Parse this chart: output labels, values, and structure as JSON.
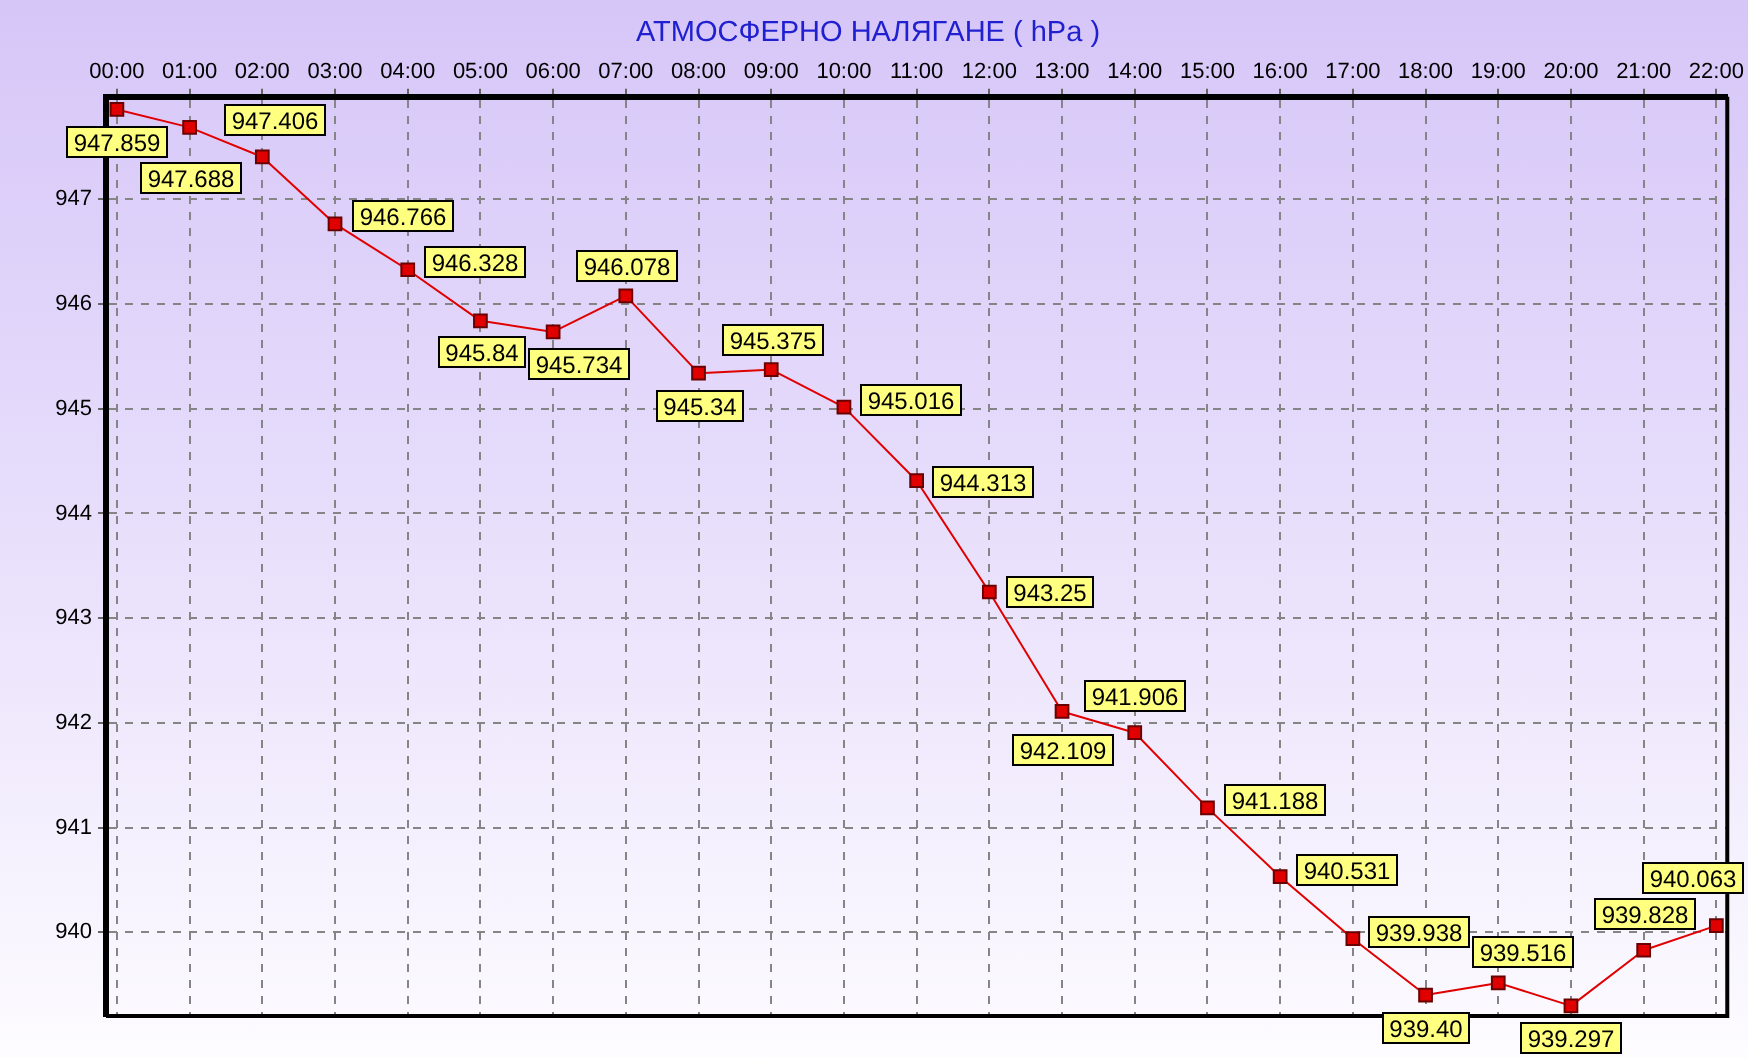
{
  "chart_data": {
    "type": "line",
    "title": "АТМОСФЕРНО НАЛЯГАНЕ ( hPa )",
    "categories": [
      "00:00",
      "01:00",
      "02:00",
      "03:00",
      "04:00",
      "05:00",
      "06:00",
      "07:00",
      "08:00",
      "09:00",
      "10:00",
      "11:00",
      "12:00",
      "13:00",
      "14:00",
      "15:00",
      "16:00",
      "17:00",
      "18:00",
      "19:00",
      "20:00",
      "21:00",
      "22:00"
    ],
    "values": [
      947.859,
      947.688,
      947.406,
      946.766,
      946.328,
      945.84,
      945.734,
      946.078,
      945.34,
      945.375,
      945.016,
      944.313,
      943.25,
      942.109,
      941.906,
      941.188,
      940.531,
      939.938,
      939.4,
      939.516,
      939.297,
      939.828,
      940.063
    ],
    "value_labels": [
      "947.859",
      "947.688",
      "947.406",
      "946.766",
      "946.328",
      "945.84",
      "945.734",
      "946.078",
      "945.34",
      "945.375",
      "945.016",
      "944.313",
      "943.25",
      "942.109",
      "941.906",
      "941.188",
      "940.531",
      "939.938",
      "939.40",
      "939.516",
      "939.297",
      "939.828",
      "940.063"
    ],
    "color": "#e00000",
    "ylim": [
      939.2,
      947.98
    ],
    "yticks": [
      940,
      941,
      942,
      943,
      944,
      945,
      946,
      947
    ],
    "grid": true,
    "marker": "square",
    "line_style": "solid"
  }
}
